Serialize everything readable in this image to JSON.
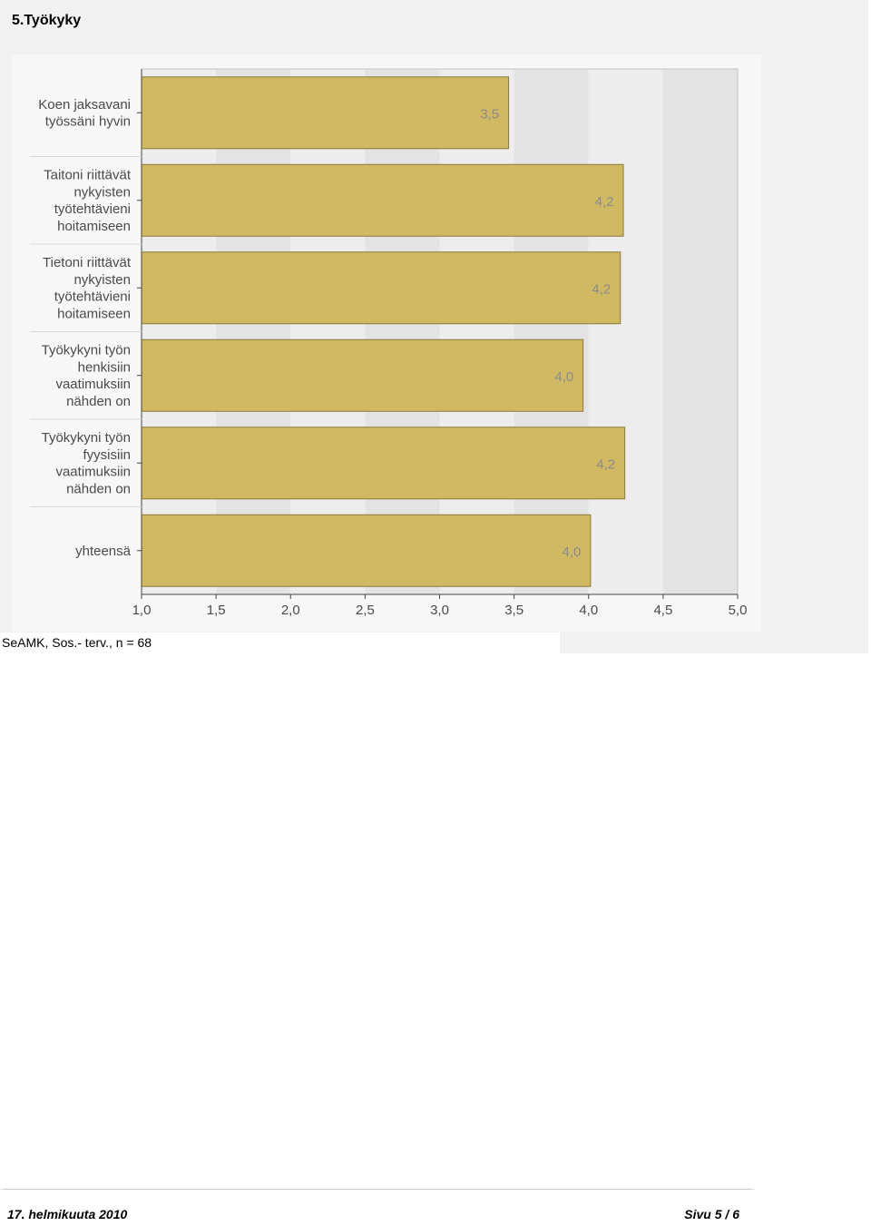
{
  "page": {
    "title": "5.Työkyky",
    "caption": "SeAMK, Sos.- terv., n = 68",
    "footer_date": "17. helmikuuta 2010",
    "footer_page": "Sivu 5 / 6"
  },
  "chart_data": {
    "type": "bar",
    "orientation": "horizontal",
    "title": "",
    "xlabel": "",
    "ylabel": "",
    "xlim": [
      1.0,
      5.0
    ],
    "x_ticks": [
      "1,0",
      "1,5",
      "2,0",
      "2,5",
      "3,0",
      "3,5",
      "4,0",
      "4,5",
      "5,0"
    ],
    "categories": [
      [
        "Koen jaksavani",
        "työssäni hyvin"
      ],
      [
        "Taitoni riittävät",
        "nykyisten",
        "työtehtävieni",
        "hoitamiseen"
      ],
      [
        "Tietoni riittävät",
        "nykyisten",
        "työtehtävieni",
        "hoitamiseen"
      ],
      [
        "Työkykyni työn",
        "henkisiin",
        "vaatimuksiin",
        "nähden on"
      ],
      [
        "Työkykyni työn",
        "fyysisiin",
        "vaatimuksiin",
        "nähden on"
      ],
      [
        "yhteensä"
      ]
    ],
    "values": [
      3.46,
      4.23,
      4.21,
      3.96,
      4.24,
      4.01
    ],
    "value_labels": [
      "3,5",
      "4,2",
      "4,2",
      "4,0",
      "4,2",
      "4,0"
    ],
    "grid": "alternating vertical bands",
    "colors": {
      "bar_fill": "#d1b964",
      "bar_stroke": "#8a7a3a",
      "band_light": "#ededed",
      "band_dark": "#e3e3e3",
      "label_text": "#4a4a4a",
      "value_text": "#8a8a8a"
    }
  }
}
